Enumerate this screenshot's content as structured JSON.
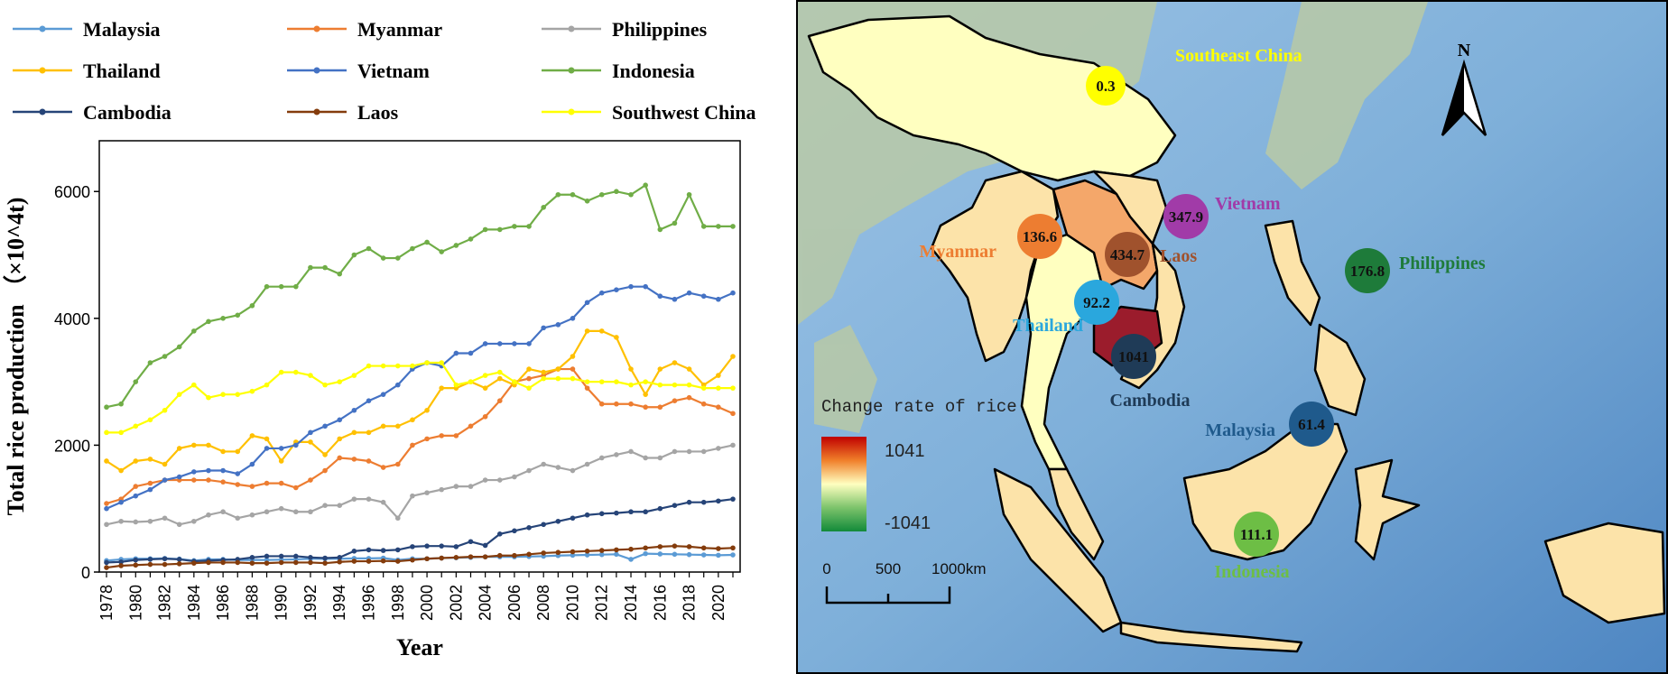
{
  "chart_data": [
    {
      "type": "line",
      "title": "",
      "xlabel": "Year",
      "ylabel": "Total rice production （×10^4t)",
      "xlim": [
        1978,
        2021
      ],
      "ylim": [
        0,
        6800
      ],
      "yticks": [
        0,
        2000,
        4000,
        6000
      ],
      "xticks": [
        1978,
        1980,
        1982,
        1984,
        1986,
        1988,
        1990,
        1992,
        1994,
        1996,
        1998,
        2000,
        2002,
        2004,
        2006,
        2008,
        2010,
        2012,
        2014,
        2016,
        2018,
        2020
      ],
      "grid": false,
      "legend_position": "top",
      "series": [
        {
          "name": "Malaysia",
          "color": "#5B9BD5",
          "values": [
            180,
            200,
            210,
            210,
            215,
            205,
            180,
            200,
            200,
            190,
            190,
            190,
            195,
            200,
            210,
            210,
            210,
            215,
            215,
            220,
            190,
            210,
            210,
            220,
            225,
            230,
            240,
            240,
            240,
            245,
            250,
            260,
            265,
            270,
            275,
            280,
            200,
            290,
            285,
            280,
            275,
            270,
            265,
            270
          ]
        },
        {
          "name": "Myanmar",
          "color": "#ED7D31",
          "values": [
            1080,
            1150,
            1350,
            1400,
            1450,
            1450,
            1450,
            1450,
            1420,
            1380,
            1350,
            1400,
            1400,
            1330,
            1450,
            1600,
            1800,
            1780,
            1750,
            1650,
            1700,
            2000,
            2100,
            2150,
            2150,
            2300,
            2450,
            2700,
            3000,
            3050,
            3100,
            3200,
            3200,
            2900,
            2650,
            2650,
            2650,
            2600,
            2600,
            2700,
            2750,
            2650,
            2600,
            2500
          ]
        },
        {
          "name": "Philippines",
          "color": "#A5A5A5",
          "values": [
            750,
            800,
            790,
            800,
            850,
            750,
            800,
            900,
            950,
            850,
            900,
            950,
            1000,
            950,
            950,
            1050,
            1050,
            1150,
            1150,
            1100,
            850,
            1200,
            1250,
            1300,
            1350,
            1350,
            1450,
            1450,
            1500,
            1600,
            1700,
            1650,
            1600,
            1700,
            1800,
            1850,
            1900,
            1800,
            1800,
            1900,
            1900,
            1900,
            1950,
            2000
          ]
        },
        {
          "name": "Thailand",
          "color": "#FFC000",
          "values": [
            1750,
            1600,
            1750,
            1780,
            1700,
            1950,
            2000,
            2000,
            1900,
            1900,
            2150,
            2100,
            1750,
            2050,
            2050,
            1850,
            2100,
            2200,
            2200,
            2300,
            2300,
            2400,
            2550,
            2900,
            2900,
            3000,
            2900,
            3050,
            2950,
            3200,
            3150,
            3200,
            3400,
            3800,
            3800,
            3700,
            3200,
            2800,
            3200,
            3300,
            3200,
            2950,
            3100,
            3400
          ]
        },
        {
          "name": "Vietnam",
          "color": "#4472C4",
          "values": [
            1000,
            1100,
            1200,
            1300,
            1450,
            1500,
            1580,
            1600,
            1600,
            1550,
            1700,
            1950,
            1950,
            2000,
            2200,
            2300,
            2400,
            2550,
            2700,
            2800,
            2950,
            3200,
            3300,
            3250,
            3450,
            3450,
            3600,
            3600,
            3600,
            3600,
            3850,
            3900,
            4000,
            4250,
            4400,
            4450,
            4500,
            4500,
            4350,
            4300,
            4400,
            4350,
            4300,
            4400
          ]
        },
        {
          "name": "Indonesia",
          "color": "#70AD47",
          "values": [
            2600,
            2650,
            3000,
            3300,
            3400,
            3550,
            3800,
            3950,
            4000,
            4050,
            4200,
            4500,
            4500,
            4500,
            4800,
            4800,
            4700,
            5000,
            5100,
            4950,
            4950,
            5100,
            5200,
            5050,
            5150,
            5250,
            5400,
            5400,
            5450,
            5450,
            5750,
            5950,
            5950,
            5850,
            5950,
            6000,
            5950,
            6100,
            5400,
            5500,
            5950,
            5450,
            5450,
            5450
          ]
        },
        {
          "name": "Cambodia",
          "color": "#264478",
          "values": [
            150,
            160,
            190,
            200,
            210,
            200,
            170,
            180,
            190,
            200,
            230,
            250,
            250,
            250,
            230,
            220,
            230,
            330,
            350,
            340,
            350,
            400,
            410,
            410,
            400,
            480,
            420,
            600,
            650,
            700,
            750,
            800,
            850,
            900,
            920,
            930,
            950,
            950,
            1000,
            1050,
            1100,
            1100,
            1120,
            1150
          ]
        },
        {
          "name": "Laos",
          "color": "#843C0C",
          "values": [
            70,
            100,
            110,
            120,
            120,
            130,
            140,
            150,
            150,
            150,
            140,
            140,
            150,
            150,
            150,
            140,
            160,
            170,
            170,
            175,
            170,
            190,
            210,
            220,
            230,
            240,
            240,
            260,
            260,
            280,
            300,
            310,
            320,
            330,
            340,
            350,
            360,
            380,
            400,
            410,
            400,
            380,
            370,
            380
          ]
        },
        {
          "name": "Southwest China",
          "color": "#FFFF00",
          "values": [
            2200,
            2200,
            2300,
            2400,
            2550,
            2800,
            2950,
            2750,
            2800,
            2800,
            2850,
            2950,
            3150,
            3150,
            3100,
            2950,
            3000,
            3100,
            3250,
            3250,
            3250,
            3250,
            3300,
            3300,
            2950,
            3000,
            3100,
            3150,
            3000,
            2900,
            3050,
            3050,
            3050,
            3000,
            3000,
            3000,
            2950,
            3000,
            2950,
            2950,
            2950,
            2900,
            2900,
            2900
          ]
        }
      ]
    },
    {
      "type": "map",
      "legend_title": "Change rate of rice",
      "legend_max": "1041",
      "legend_min": "-1041",
      "scale_labels": [
        "0",
        "500",
        "1000km"
      ],
      "north_label": "N",
      "regions": [
        {
          "name": "Southeast China",
          "value": "0.3",
          "color": "#FFFF00"
        },
        {
          "name": "Vietnam",
          "value": "347.9",
          "color": "#A13BA8"
        },
        {
          "name": "Myanmar",
          "value": "136.6",
          "color": "#ED7D31"
        },
        {
          "name": "Laos",
          "value": "434.7",
          "color": "#A0522D"
        },
        {
          "name": "Thailand",
          "value": "92.2",
          "color": "#2AA7DD"
        },
        {
          "name": "Cambodia",
          "value": "1041",
          "color": "#1F3B57"
        },
        {
          "name": "Philippines",
          "value": "176.8",
          "color": "#1E7B3A"
        },
        {
          "name": "Malaysia",
          "value": "61.4",
          "color": "#1F5A8C"
        },
        {
          "name": "Indonesia",
          "value": "111.1",
          "color": "#6DBE45"
        }
      ]
    }
  ]
}
